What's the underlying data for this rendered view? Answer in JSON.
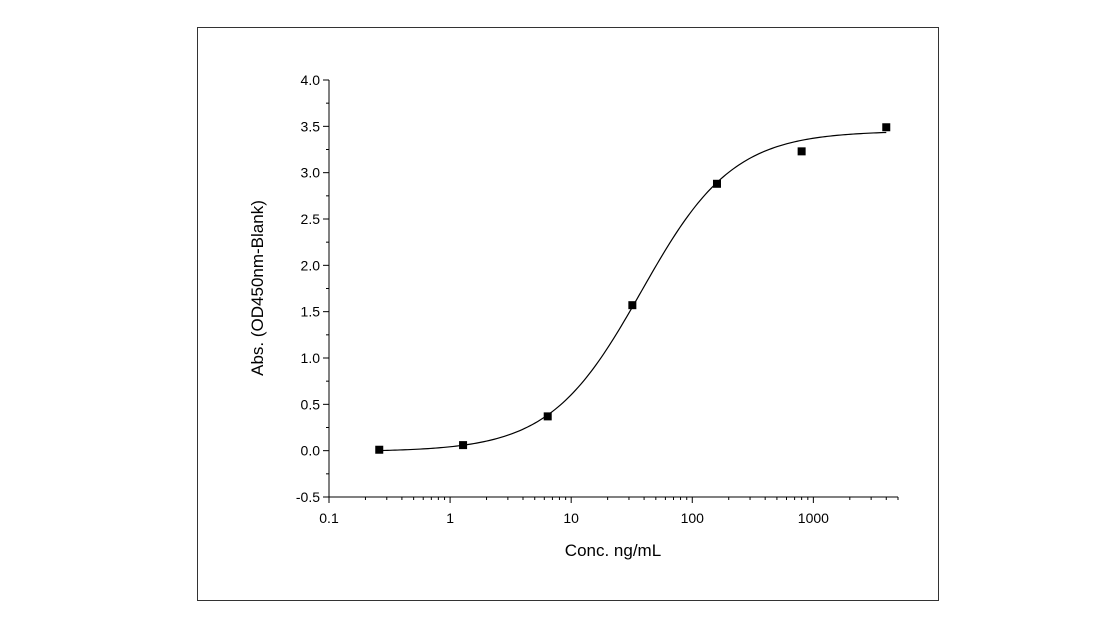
{
  "chart_data": {
    "type": "scatter",
    "xlabel": "Conc. ng/mL",
    "ylabel": "Abs. (OD450nm-Blank)",
    "xscale": "log",
    "xlim": [
      0.1,
      5000
    ],
    "ylim": [
      -0.5,
      4.0
    ],
    "x_ticks": [
      0.1,
      1,
      10,
      100,
      1000
    ],
    "x_tick_labels": [
      "0.1",
      "1",
      "10",
      "100",
      "1000"
    ],
    "y_ticks": [
      -0.5,
      0.0,
      0.5,
      1.0,
      1.5,
      2.0,
      2.5,
      3.0,
      3.5,
      4.0
    ],
    "y_tick_labels": [
      "-0.5",
      "0.0",
      "0.5",
      "1.0",
      "1.5",
      "2.0",
      "2.5",
      "3.0",
      "3.5",
      "4.0"
    ],
    "grid": false,
    "legend": "none",
    "series": [
      {
        "marker": "square",
        "color": "#000000",
        "x": [
          0.26,
          1.28,
          6.4,
          32,
          160,
          800,
          4000
        ],
        "y": [
          0.01,
          0.06,
          0.37,
          1.57,
          2.88,
          3.23,
          3.49
        ]
      }
    ],
    "fit_curve": {
      "model": "4PL",
      "color": "#000000",
      "bottom": -0.01,
      "top": 3.45,
      "ec50": 38,
      "hill": 1.15,
      "x_range": [
        0.25,
        4000
      ]
    }
  }
}
